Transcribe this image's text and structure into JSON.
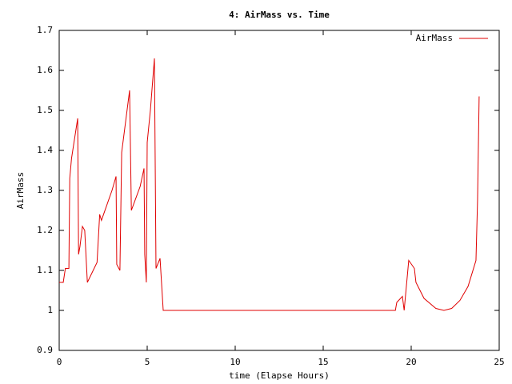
{
  "chart_data": {
    "type": "line",
    "title": "4: AirMass vs. Time",
    "x_label": "time (Elapse Hours)",
    "y_label": "AirMass",
    "xlim": [
      0,
      25
    ],
    "xticks": [
      0,
      5,
      10,
      15,
      20,
      25
    ],
    "ylim": [
      0.9,
      1.7
    ],
    "yticks": [
      0.9,
      1,
      1.1,
      1.2,
      1.3,
      1.4,
      1.5,
      1.6,
      1.7
    ],
    "legend": "top-right",
    "x": [
      0,
      0.23,
      0.35,
      0.55,
      0.6,
      0.7,
      1.05,
      1.1,
      1.18,
      1.32,
      1.45,
      1.6,
      2.15,
      2.3,
      2.4,
      3.0,
      3.23,
      3.27,
      3.45,
      3.55,
      4.0,
      4.1,
      4.6,
      4.82,
      4.86,
      4.95,
      5.0,
      5.18,
      5.41,
      5.5,
      5.73,
      5.91,
      19.1,
      19.18,
      19.5,
      19.6,
      19.86,
      20.18,
      20.27,
      20.73,
      21.4,
      21.86,
      22.3,
      22.77,
      23.23,
      23.68,
      23.77,
      23.86
    ],
    "series": [
      {
        "name": "AirMass",
        "color": "#e00000",
        "values": [
          1.07,
          1.07,
          1.105,
          1.105,
          1.33,
          1.38,
          1.48,
          1.14,
          1.16,
          1.21,
          1.2,
          1.07,
          1.12,
          1.24,
          1.225,
          1.3,
          1.335,
          1.115,
          1.1,
          1.395,
          1.55,
          1.25,
          1.31,
          1.355,
          1.14,
          1.07,
          1.42,
          1.5,
          1.63,
          1.105,
          1.13,
          1.0,
          1.0,
          1.02,
          1.035,
          1.0,
          1.125,
          1.105,
          1.07,
          1.03,
          1.005,
          1.0,
          1.005,
          1.025,
          1.06,
          1.125,
          1.275,
          1.535
        ]
      }
    ]
  }
}
